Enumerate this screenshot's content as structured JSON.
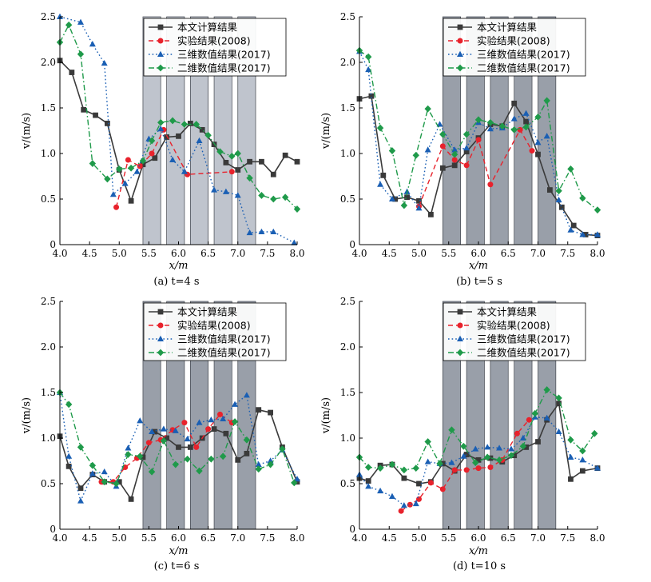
{
  "colors": {
    "series": [
      "#3a3a3a",
      "#e8222c",
      "#1a5fb4",
      "#1f9a4a"
    ],
    "band": "#a9b0bc",
    "band_dark": "#7f8793"
  },
  "chart_data": [
    {
      "type": "line",
      "caption": "(a) t=4 s",
      "xlabel": "x/m",
      "ylabel": "v/(m/s)",
      "xlim": [
        4.0,
        8.0
      ],
      "ylim": [
        0,
        2.5
      ],
      "xticks": [
        "4.0",
        "4.5",
        "5.0",
        "5.5",
        "6.0",
        "6.5",
        "7.0",
        "7.5",
        "8.0"
      ],
      "yticks": [
        "0",
        "0.5",
        "1.0",
        "1.5",
        "2.0",
        "2.5"
      ],
      "bands": [
        [
          5.4,
          5.7
        ],
        [
          5.8,
          6.1
        ],
        [
          6.2,
          6.5
        ],
        [
          6.6,
          6.9
        ],
        [
          7.0,
          7.3
        ]
      ],
      "band_style": "light",
      "legend_position": "top-right",
      "series": [
        {
          "name": "本文计算结果",
          "x": [
            4.0,
            4.2,
            4.4,
            4.6,
            4.8,
            5.0,
            5.2,
            5.4,
            5.6,
            5.8,
            6.0,
            6.2,
            6.4,
            6.6,
            6.8,
            7.0,
            7.2,
            7.4,
            7.6,
            7.8,
            8.0
          ],
          "y": [
            2.02,
            1.89,
            1.48,
            1.42,
            1.33,
            0.82,
            0.48,
            0.88,
            0.95,
            1.18,
            1.19,
            1.33,
            1.26,
            1.1,
            0.9,
            0.82,
            0.91,
            0.91,
            0.77,
            0.98,
            0.91
          ]
        },
        {
          "name": "实验结果(2008)",
          "x": [
            4.95,
            5.15,
            5.35,
            5.55,
            5.75,
            6.15,
            6.9
          ],
          "y": [
            0.41,
            0.93,
            0.86,
            1.0,
            1.26,
            0.77,
            0.8
          ]
        },
        {
          "name": "三维数值结果(2017)",
          "x": [
            4.0,
            4.35,
            4.55,
            4.75,
            4.9,
            5.1,
            5.3,
            5.5,
            5.7,
            5.9,
            6.1,
            6.35,
            6.6,
            6.8,
            7.0,
            7.2,
            7.4,
            7.6,
            7.95
          ],
          "y": [
            2.5,
            2.44,
            2.2,
            1.99,
            0.55,
            0.67,
            0.8,
            1.16,
            1.27,
            0.93,
            0.8,
            1.14,
            0.6,
            0.58,
            0.54,
            0.13,
            0.14,
            0.14,
            0.02
          ]
        },
        {
          "name": "二维数值结果(2017)",
          "x": [
            4.0,
            4.15,
            4.35,
            4.55,
            4.8,
            5.0,
            5.2,
            5.4,
            5.55,
            5.7,
            5.9,
            6.1,
            6.3,
            6.5,
            6.7,
            6.9,
            7.0,
            7.2,
            7.4,
            7.6,
            7.8,
            8.0
          ],
          "y": [
            2.22,
            2.41,
            2.09,
            0.89,
            0.72,
            0.83,
            0.84,
            0.92,
            1.14,
            1.34,
            1.36,
            1.32,
            1.32,
            1.2,
            1.02,
            0.97,
            1.0,
            0.73,
            0.54,
            0.5,
            0.52,
            0.39
          ]
        }
      ]
    },
    {
      "type": "line",
      "caption": "(b) t=5 s",
      "xlabel": "x/m",
      "ylabel": "v/(m/s)",
      "xlim": [
        4.0,
        8.0
      ],
      "ylim": [
        0,
        2.5
      ],
      "xticks": [
        "4.0",
        "4.5",
        "5.0",
        "5.5",
        "6.0",
        "6.5",
        "7.0",
        "7.5",
        "8.0"
      ],
      "yticks": [
        "0",
        "0.5",
        "1.0",
        "1.5",
        "2.0",
        "2.5"
      ],
      "bands": [
        [
          5.4,
          5.7
        ],
        [
          5.8,
          6.1
        ],
        [
          6.2,
          6.5
        ],
        [
          6.6,
          6.9
        ],
        [
          7.0,
          7.3
        ]
      ],
      "band_style": "dark",
      "legend_position": "top-right",
      "series": [
        {
          "name": "本文计算结果",
          "x": [
            4.0,
            4.2,
            4.4,
            4.6,
            4.8,
            5.0,
            5.2,
            5.4,
            5.6,
            5.8,
            6.0,
            6.2,
            6.4,
            6.6,
            6.8,
            7.0,
            7.2,
            7.4,
            7.6,
            7.8,
            8.0
          ],
          "y": [
            1.6,
            1.63,
            0.76,
            0.5,
            0.52,
            0.48,
            0.33,
            0.84,
            0.87,
            1.02,
            1.17,
            1.32,
            1.3,
            1.55,
            1.35,
            0.99,
            0.6,
            0.41,
            0.21,
            0.11,
            0.1
          ]
        },
        {
          "name": "实验结果(2008)",
          "x": [
            5.0,
            5.4,
            5.6,
            5.8,
            6.0,
            6.2,
            6.7,
            6.9
          ],
          "y": [
            0.42,
            1.08,
            0.93,
            0.87,
            1.15,
            0.66,
            1.26,
            1.03
          ]
        },
        {
          "name": "三维数值结果(2017)",
          "x": [
            4.0,
            4.15,
            4.35,
            4.55,
            4.8,
            5.0,
            5.15,
            5.35,
            5.6,
            5.8,
            6.0,
            6.2,
            6.4,
            6.6,
            6.8,
            7.0,
            7.15,
            7.35,
            7.55,
            7.75,
            8.0
          ],
          "y": [
            2.12,
            1.92,
            0.66,
            0.5,
            0.58,
            0.4,
            1.04,
            1.32,
            1.04,
            1.06,
            1.34,
            1.27,
            1.28,
            1.38,
            1.44,
            1.12,
            1.19,
            0.49,
            0.16,
            0.11,
            0.11
          ]
        },
        {
          "name": "二维数值结果(2017)",
          "x": [
            4.0,
            4.15,
            4.35,
            4.55,
            4.75,
            4.95,
            5.15,
            5.4,
            5.6,
            5.8,
            6.0,
            6.2,
            6.4,
            6.6,
            6.8,
            7.0,
            7.15,
            7.35,
            7.55,
            7.75,
            8.0
          ],
          "y": [
            2.13,
            2.06,
            1.28,
            1.03,
            0.43,
            0.98,
            1.49,
            1.21,
            0.99,
            1.21,
            1.37,
            1.34,
            1.3,
            1.26,
            1.29,
            1.4,
            1.58,
            0.59,
            0.83,
            0.51,
            0.38
          ]
        }
      ]
    },
    {
      "type": "line",
      "caption": "(c) t=6 s",
      "xlabel": "x/m",
      "ylabel": "v/(m/s)",
      "xlim": [
        4.0,
        8.0
      ],
      "ylim": [
        0,
        2.5
      ],
      "xticks": [
        "4.0",
        "4.5",
        "5.0",
        "5.5",
        "6.0",
        "6.5",
        "7.0",
        "7.5",
        "8.0"
      ],
      "yticks": [
        "0",
        "0.5",
        "1.0",
        "1.5",
        "2.0",
        "2.5"
      ],
      "bands": [
        [
          5.4,
          5.7
        ],
        [
          5.8,
          6.1
        ],
        [
          6.2,
          6.5
        ],
        [
          6.6,
          6.9
        ],
        [
          7.0,
          7.3
        ]
      ],
      "band_style": "dark",
      "legend_position": "top-right",
      "series": [
        {
          "name": "本文计算结果",
          "x": [
            4.0,
            4.15,
            4.35,
            4.55,
            4.75,
            5.0,
            5.2,
            5.4,
            5.6,
            5.8,
            6.0,
            6.2,
            6.4,
            6.6,
            6.8,
            7.0,
            7.15,
            7.35,
            7.55,
            7.75,
            8.0
          ],
          "y": [
            1.02,
            0.69,
            0.45,
            0.6,
            0.52,
            0.52,
            0.33,
            0.79,
            1.07,
            1.0,
            0.9,
            0.9,
            1.0,
            1.1,
            1.05,
            0.76,
            0.83,
            1.31,
            1.28,
            0.9,
            0.52
          ]
        },
        {
          "name": "实验结果(2008)",
          "x": [
            4.7,
            4.9,
            5.1,
            5.3,
            5.5,
            5.7,
            5.9,
            6.1,
            6.3,
            6.5,
            6.7,
            6.9
          ],
          "y": [
            0.52,
            0.52,
            0.68,
            0.78,
            0.95,
            0.98,
            1.09,
            1.17,
            0.9,
            1.1,
            1.26,
            1.17
          ]
        },
        {
          "name": "三维数值结果(2017)",
          "x": [
            4.0,
            4.15,
            4.35,
            4.55,
            4.75,
            4.95,
            5.15,
            5.35,
            5.55,
            5.75,
            5.95,
            6.15,
            6.35,
            6.55,
            6.75,
            6.95,
            7.15,
            7.35,
            7.55,
            7.75,
            8.0
          ],
          "y": [
            1.5,
            0.8,
            0.31,
            0.61,
            0.63,
            0.47,
            0.89,
            1.19,
            1.07,
            1.1,
            1.08,
            0.99,
            1.17,
            1.2,
            1.21,
            1.37,
            1.47,
            0.71,
            0.75,
            0.87,
            0.55
          ]
        },
        {
          "name": "二维数值结果(2017)",
          "x": [
            4.0,
            4.15,
            4.35,
            4.55,
            4.75,
            4.95,
            5.15,
            5.35,
            5.55,
            5.75,
            5.95,
            6.15,
            6.35,
            6.55,
            6.75,
            6.95,
            7.15,
            7.35,
            7.55,
            7.75,
            7.95
          ],
          "y": [
            1.5,
            1.37,
            0.9,
            0.7,
            0.52,
            0.5,
            0.82,
            0.8,
            0.63,
            0.97,
            0.71,
            0.77,
            0.64,
            0.77,
            0.8,
            1.18,
            0.98,
            0.66,
            0.71,
            0.88,
            0.51
          ]
        }
      ]
    },
    {
      "type": "line",
      "caption": "(d) t=10 s",
      "xlabel": "x/m",
      "ylabel": "v/(m/s)",
      "xlim": [
        4.0,
        8.0
      ],
      "ylim": [
        0,
        2.5
      ],
      "xticks": [
        "4.0",
        "4.5",
        "5.0",
        "5.5",
        "6.0",
        "6.5",
        "7.0",
        "7.5",
        "8.0"
      ],
      "yticks": [
        "0",
        "0.5",
        "1.0",
        "1.5",
        "2.0",
        "2.5"
      ],
      "bands": [
        [
          5.4,
          5.7
        ],
        [
          5.8,
          6.1
        ],
        [
          6.2,
          6.5
        ],
        [
          6.6,
          6.9
        ],
        [
          7.0,
          7.3
        ]
      ],
      "band_style": "dark",
      "legend_position": "top-right",
      "series": [
        {
          "name": "本文计算结果",
          "x": [
            4.0,
            4.15,
            4.35,
            4.55,
            4.75,
            5.0,
            5.2,
            5.4,
            5.6,
            5.8,
            6.0,
            6.2,
            6.4,
            6.6,
            6.8,
            7.0,
            7.15,
            7.35,
            7.55,
            7.75,
            8.0
          ],
          "y": [
            0.56,
            0.53,
            0.7,
            0.71,
            0.56,
            0.5,
            0.52,
            0.72,
            0.64,
            0.82,
            0.76,
            0.78,
            0.74,
            0.81,
            0.9,
            0.96,
            1.2,
            1.38,
            0.55,
            0.64,
            0.67
          ]
        },
        {
          "name": "实验结果(2008)",
          "x": [
            4.7,
            4.85,
            5.0,
            5.2,
            5.4,
            5.6,
            5.8,
            6.0,
            6.2,
            6.4,
            6.65,
            6.85
          ],
          "y": [
            0.2,
            0.27,
            0.33,
            0.51,
            0.44,
            0.65,
            0.65,
            0.67,
            0.68,
            0.76,
            1.05,
            1.2
          ]
        },
        {
          "name": "三维数值结果(2017)",
          "x": [
            4.0,
            4.15,
            4.35,
            4.55,
            4.75,
            4.95,
            5.15,
            5.35,
            5.55,
            5.75,
            5.95,
            6.15,
            6.35,
            6.55,
            6.75,
            6.95,
            7.15,
            7.35,
            7.55,
            7.75,
            8.0
          ],
          "y": [
            0.6,
            0.47,
            0.42,
            0.36,
            0.26,
            0.28,
            0.74,
            0.72,
            0.73,
            0.8,
            0.88,
            0.9,
            0.89,
            0.88,
            1.0,
            1.23,
            1.22,
            1.07,
            0.79,
            0.76,
            0.67
          ]
        },
        {
          "name": "二维数值结果(2017)",
          "x": [
            4.0,
            4.15,
            4.35,
            4.55,
            4.75,
            4.95,
            5.15,
            5.35,
            5.55,
            5.75,
            5.95,
            6.15,
            6.35,
            6.55,
            6.75,
            6.95,
            7.15,
            7.35,
            7.55,
            7.75,
            7.95
          ],
          "y": [
            0.79,
            0.68,
            0.67,
            0.71,
            0.65,
            0.67,
            0.96,
            0.72,
            1.09,
            0.91,
            0.73,
            0.79,
            0.76,
            0.81,
            0.91,
            1.27,
            1.53,
            1.44,
            0.98,
            0.86,
            1.05
          ]
        }
      ]
    }
  ]
}
